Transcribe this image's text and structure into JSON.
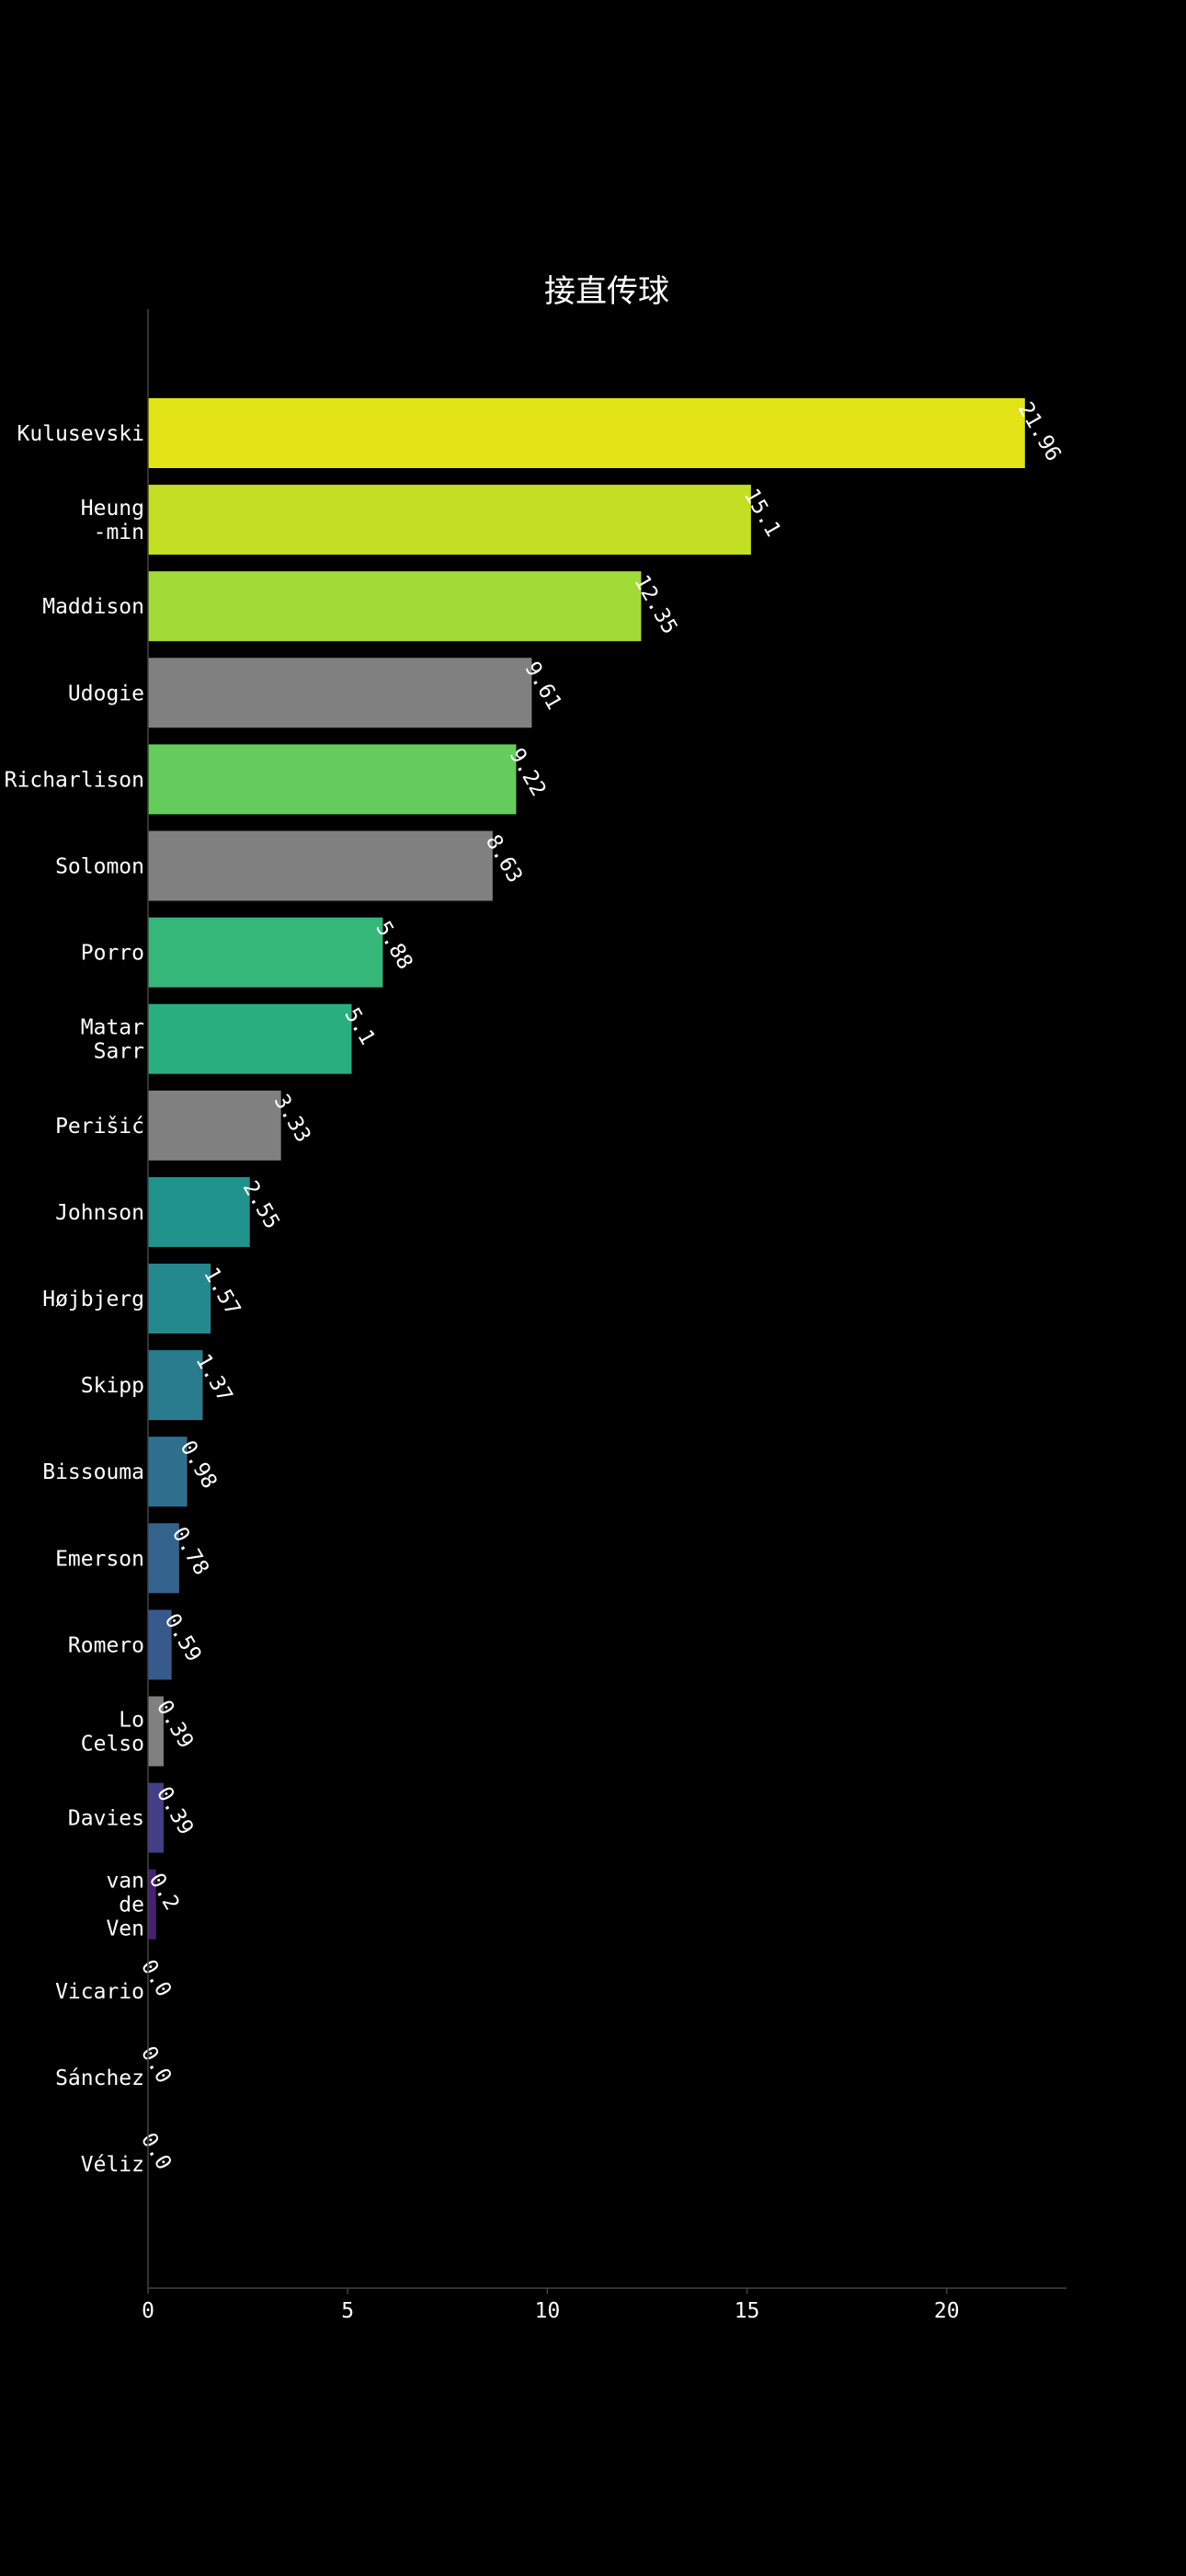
{
  "chart_data": {
    "type": "bar",
    "orientation": "horizontal",
    "title": "接直传球",
    "xlabel": "",
    "ylabel": "",
    "xlim": [
      0,
      23
    ],
    "xticks": [
      0,
      5,
      10,
      15,
      20
    ],
    "grid": false,
    "legend": "none",
    "categories": [
      [
        "Kulusevski"
      ],
      [
        "Heung",
        "-min"
      ],
      [
        "Maddison"
      ],
      [
        "Udogie"
      ],
      [
        "Richarlison"
      ],
      [
        "Solomon"
      ],
      [
        "Porro"
      ],
      [
        "Matar",
        "Sarr"
      ],
      [
        "Perišić"
      ],
      [
        "Johnson"
      ],
      [
        "Højbjerg"
      ],
      [
        "Skipp"
      ],
      [
        "Bissouma"
      ],
      [
        "Emerson"
      ],
      [
        "Romero"
      ],
      [
        "Lo",
        "Celso"
      ],
      [
        "Davies"
      ],
      [
        "van",
        "de",
        "Ven"
      ],
      [
        "Vicario"
      ],
      [
        "Sánchez"
      ],
      [
        "Véliz"
      ]
    ],
    "values": [
      21.96,
      15.1,
      12.35,
      9.61,
      9.22,
      8.63,
      5.88,
      5.1,
      3.33,
      2.55,
      1.57,
      1.37,
      0.98,
      0.78,
      0.59,
      0.39,
      0.39,
      0.2,
      0.0,
      0.0,
      0.0
    ],
    "value_labels": [
      "21.96",
      "15.1",
      "12.35",
      "9.61",
      "9.22",
      "8.63",
      "5.88",
      "5.1",
      "3.33",
      "2.55",
      "1.57",
      "1.37",
      "0.98",
      "0.78",
      "0.59",
      "0.39",
      "0.39",
      "0.2",
      "0.0",
      "0.0",
      "0.0"
    ],
    "colors": [
      "#e2e418",
      "#c2df23",
      "#a2da37",
      "#808080",
      "#66cb5d",
      "#808080",
      "#35b779",
      "#29af7f",
      "#808080",
      "#20928c",
      "#23898e",
      "#297b8e",
      "#2e6f8e",
      "#33628d",
      "#38598c",
      "#808080",
      "#433e85",
      "#482071",
      "#440154",
      "#440154",
      "#440154"
    ]
  }
}
